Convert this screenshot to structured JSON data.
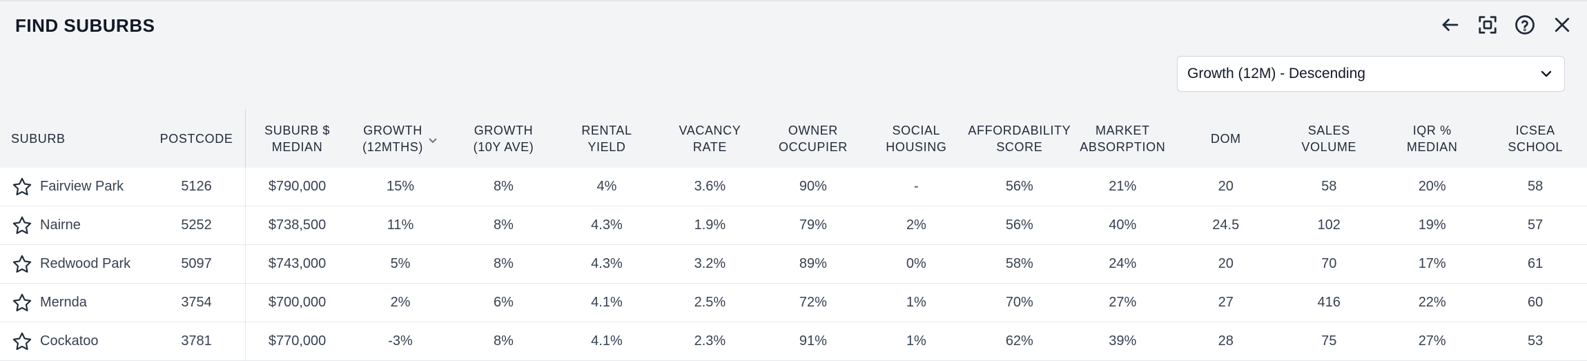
{
  "window": {
    "title": "FIND SUBURBS",
    "icons": [
      "back-arrow-icon",
      "expand-icon",
      "help-icon",
      "close-icon"
    ]
  },
  "sort": {
    "selected": "Growth (12M) - Descending"
  },
  "table": {
    "headers": [
      "SUBURB",
      "POSTCODE",
      "SUBURB $\nMEDIAN",
      "GROWTH\n(12MTHS)",
      "GROWTH\n(10Y AVE)",
      "RENTAL\nYIELD",
      "VACANCY\nRATE",
      "OWNER\nOCCUPIER",
      "SOCIAL\nHOUSING",
      "AFFORDABILITY\nSCORE",
      "MARKET\nABSORPTION",
      "DOM",
      "SALES\nVOLUME",
      "IQR %\nMEDIAN",
      "ICSEA\nSCHOOL"
    ],
    "rows": [
      {
        "suburb": "Fairview Park",
        "postcode": "5126",
        "median": "$790,000",
        "growth12": "15%",
        "growth10": "8%",
        "rental_yield": "4%",
        "vacancy": "3.6%",
        "owner": "90%",
        "social": "-",
        "afford": "56%",
        "absorption": "21%",
        "dom": "20",
        "sales": "58",
        "iqr": "20%",
        "icsea": "58"
      },
      {
        "suburb": "Nairne",
        "postcode": "5252",
        "median": "$738,500",
        "growth12": "11%",
        "growth10": "8%",
        "rental_yield": "4.3%",
        "vacancy": "1.9%",
        "owner": "79%",
        "social": "2%",
        "afford": "56%",
        "absorption": "40%",
        "dom": "24.5",
        "sales": "102",
        "iqr": "19%",
        "icsea": "57"
      },
      {
        "suburb": "Redwood Park",
        "postcode": "5097",
        "median": "$743,000",
        "growth12": "5%",
        "growth10": "8%",
        "rental_yield": "4.3%",
        "vacancy": "3.2%",
        "owner": "89%",
        "social": "0%",
        "afford": "58%",
        "absorption": "24%",
        "dom": "20",
        "sales": "70",
        "iqr": "17%",
        "icsea": "61"
      },
      {
        "suburb": "Mernda",
        "postcode": "3754",
        "median": "$700,000",
        "growth12": "2%",
        "growth10": "6%",
        "rental_yield": "4.1%",
        "vacancy": "2.5%",
        "owner": "72%",
        "social": "1%",
        "afford": "70%",
        "absorption": "27%",
        "dom": "27",
        "sales": "416",
        "iqr": "22%",
        "icsea": "60"
      },
      {
        "suburb": "Cockatoo",
        "postcode": "3781",
        "median": "$770,000",
        "growth12": "-3%",
        "growth10": "8%",
        "rental_yield": "4.1%",
        "vacancy": "2.3%",
        "owner": "91%",
        "social": "1%",
        "afford": "62%",
        "absorption": "39%",
        "dom": "28",
        "sales": "75",
        "iqr": "27%",
        "icsea": "53"
      }
    ]
  }
}
